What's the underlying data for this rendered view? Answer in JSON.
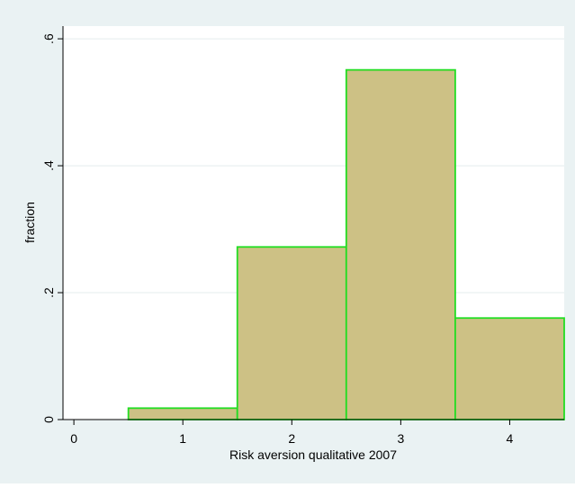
{
  "chart_data": {
    "type": "bar",
    "title": "",
    "xlabel": "Risk aversion qualitative 2007",
    "ylabel": "fraction",
    "categories": [
      "1",
      "2",
      "3",
      "4"
    ],
    "x_centers": [
      1,
      2,
      3,
      4
    ],
    "bin_width": 1,
    "values": [
      0.018,
      0.272,
      0.551,
      0.16
    ],
    "xlim": [
      -0.1,
      4.5
    ],
    "ylim": [
      0,
      0.62
    ],
    "x_ticks": [
      0,
      1,
      2,
      3,
      4
    ],
    "x_tick_labels": [
      "0",
      "1",
      "2",
      "3",
      "4"
    ],
    "y_ticks": [
      0,
      0.2,
      0.4,
      0.6
    ],
    "y_tick_labels": [
      "0",
      ".2",
      ".4",
      ".6"
    ],
    "grid": true,
    "colors": {
      "background": "#eaf2f3",
      "plot_area": "#ffffff",
      "bar_fill": "#cdc185",
      "bar_stroke": "#22dd22",
      "gridline": "#e4ecee",
      "axis": "#000000"
    }
  }
}
